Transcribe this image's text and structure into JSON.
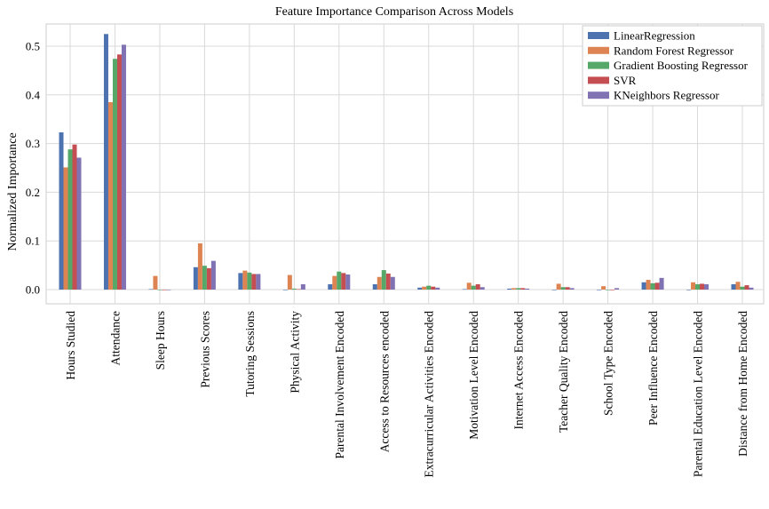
{
  "chart_data": {
    "type": "bar",
    "title": "Feature Importance Comparison Across Models",
    "xlabel": "",
    "ylabel": "Normalized Importance",
    "ylim": [
      -0.03,
      0.55
    ],
    "yticks": [
      0.0,
      0.1,
      0.2,
      0.3,
      0.4,
      0.5
    ],
    "ytick_labels": [
      "0.0",
      "0.1",
      "0.2",
      "0.3",
      "0.4",
      "0.5"
    ],
    "grid": true,
    "legend_position": "top-right",
    "categories": [
      "Hours Studied",
      "Attendance",
      "Sleep Hours",
      "Previous Scores",
      "Tutoring Sessions",
      "Physical Activity",
      "Parental Involvement Encoded",
      "Access to Resources encoded",
      "Extracurricular Activities Encoded",
      "Motivation Level Encoded",
      "Internet Access Encoded",
      "Teacher Quality Encoded",
      "School Type Encoded",
      "Peer Influence Encoded",
      "Parental Education Level Encoded",
      "Distance from Home Encoded"
    ],
    "series": [
      {
        "name": "LinearRegression",
        "color": "#4c72b0",
        "values": [
          0.323,
          0.525,
          0.001,
          0.046,
          0.034,
          0.0,
          0.011,
          0.011,
          0.004,
          0.001,
          0.002,
          0.0,
          0.0,
          0.015,
          0.0,
          0.011
        ]
      },
      {
        "name": "Random Forest Regressor",
        "color": "#dd8452",
        "values": [
          0.251,
          0.385,
          0.028,
          0.095,
          0.039,
          0.03,
          0.028,
          0.026,
          0.006,
          0.014,
          0.003,
          0.012,
          0.007,
          0.02,
          0.015,
          0.016
        ]
      },
      {
        "name": "Gradient Boosting Regressor",
        "color": "#55a868",
        "values": [
          0.288,
          0.474,
          0.0,
          0.049,
          0.035,
          0.002,
          0.037,
          0.04,
          0.008,
          0.008,
          0.003,
          0.005,
          0.0,
          0.013,
          0.011,
          0.006
        ]
      },
      {
        "name": "SVR",
        "color": "#c44e52",
        "values": [
          0.298,
          0.483,
          0.0,
          0.044,
          0.032,
          0.001,
          0.034,
          0.033,
          0.006,
          0.011,
          0.003,
          0.005,
          0.0,
          0.014,
          0.012,
          0.009
        ]
      },
      {
        "name": "KNeighbors Regressor",
        "color": "#8172b3",
        "values": [
          0.271,
          0.503,
          0.0,
          0.059,
          0.032,
          0.011,
          0.031,
          0.026,
          0.004,
          0.005,
          0.002,
          0.003,
          0.003,
          0.024,
          0.011,
          0.004
        ]
      }
    ]
  }
}
